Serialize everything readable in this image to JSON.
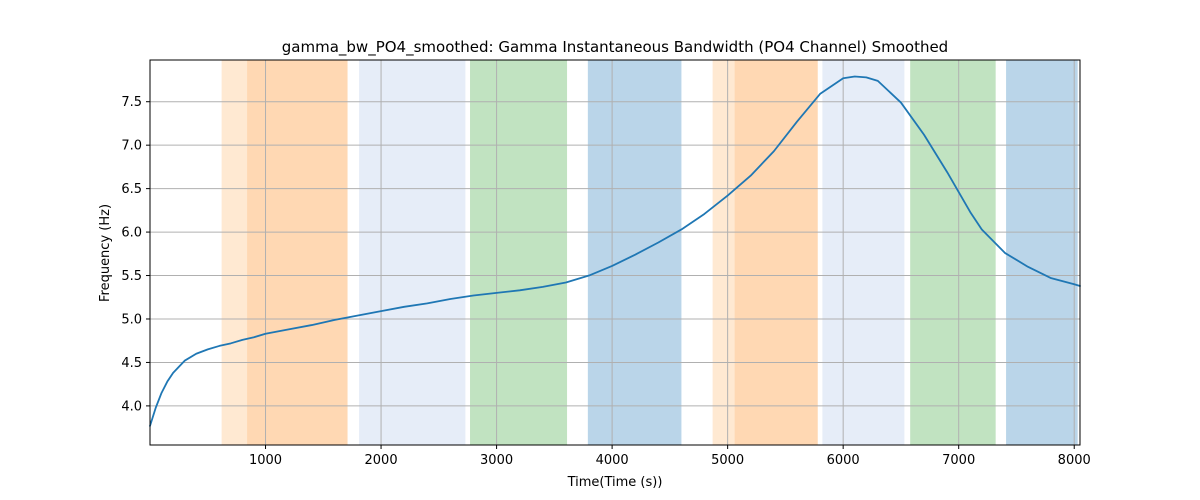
{
  "chart_data": {
    "type": "line",
    "title": "gamma_bw_PO4_smoothed: Gamma Instantaneous Bandwidth (PO4 Channel) Smoothed",
    "xlabel": "Time(Time (s))",
    "ylabel": "Frequency (Hz)",
    "xlim": [
      0,
      8050
    ],
    "ylim": [
      3.55,
      7.98
    ],
    "xticks": [
      1000,
      2000,
      3000,
      4000,
      5000,
      6000,
      7000,
      8000
    ],
    "yticks": [
      4.0,
      4.5,
      5.0,
      5.5,
      6.0,
      6.5,
      7.0,
      7.5
    ],
    "grid": true,
    "series": [
      {
        "color": "#1f77b4",
        "x": [
          0,
          50,
          100,
          150,
          200,
          300,
          400,
          500,
          600,
          700,
          800,
          900,
          1000,
          1200,
          1400,
          1600,
          1800,
          2000,
          2200,
          2400,
          2600,
          2800,
          3000,
          3200,
          3400,
          3600,
          3800,
          4000,
          4200,
          4400,
          4600,
          4800,
          5000,
          5200,
          5400,
          5600,
          5800,
          6000,
          6100,
          6200,
          6300,
          6500,
          6700,
          6900,
          7000,
          7100,
          7200,
          7400,
          7600,
          7800,
          8000,
          8050
        ],
        "y": [
          3.77,
          3.98,
          4.15,
          4.28,
          4.38,
          4.52,
          4.6,
          4.65,
          4.69,
          4.72,
          4.76,
          4.79,
          4.83,
          4.88,
          4.93,
          4.99,
          5.04,
          5.09,
          5.14,
          5.18,
          5.23,
          5.27,
          5.3,
          5.33,
          5.37,
          5.42,
          5.5,
          5.61,
          5.74,
          5.88,
          6.03,
          6.21,
          6.42,
          6.65,
          6.93,
          7.27,
          7.59,
          7.77,
          7.79,
          7.78,
          7.74,
          7.49,
          7.12,
          6.69,
          6.46,
          6.23,
          6.03,
          5.76,
          5.6,
          5.47,
          5.4,
          5.38
        ]
      }
    ],
    "bands": [
      {
        "x0": 620,
        "x1": 840,
        "color": "#ffe9d2"
      },
      {
        "x0": 840,
        "x1": 1710,
        "color": "#ffd8b3"
      },
      {
        "x0": 1810,
        "x1": 2730,
        "color": "#e6edf8"
      },
      {
        "x0": 2770,
        "x1": 3610,
        "color": "#c1e3c1"
      },
      {
        "x0": 3790,
        "x1": 4600,
        "color": "#bad5e9"
      },
      {
        "x0": 4870,
        "x1": 5060,
        "color": "#ffe9d2"
      },
      {
        "x0": 5060,
        "x1": 5780,
        "color": "#ffd8b3"
      },
      {
        "x0": 5820,
        "x1": 6530,
        "color": "#e6edf8"
      },
      {
        "x0": 6580,
        "x1": 7320,
        "color": "#c1e3c1"
      },
      {
        "x0": 7410,
        "x1": 8030,
        "color": "#bad5e9"
      }
    ]
  }
}
